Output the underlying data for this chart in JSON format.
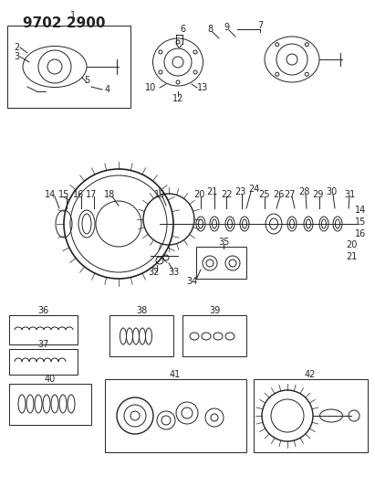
{
  "title": "9702 2900",
  "bg_color": "#ffffff",
  "line_color": "#222222",
  "title_fontsize": 11,
  "label_fontsize": 7,
  "fig_width": 4.11,
  "fig_height": 5.33,
  "dpi": 100
}
